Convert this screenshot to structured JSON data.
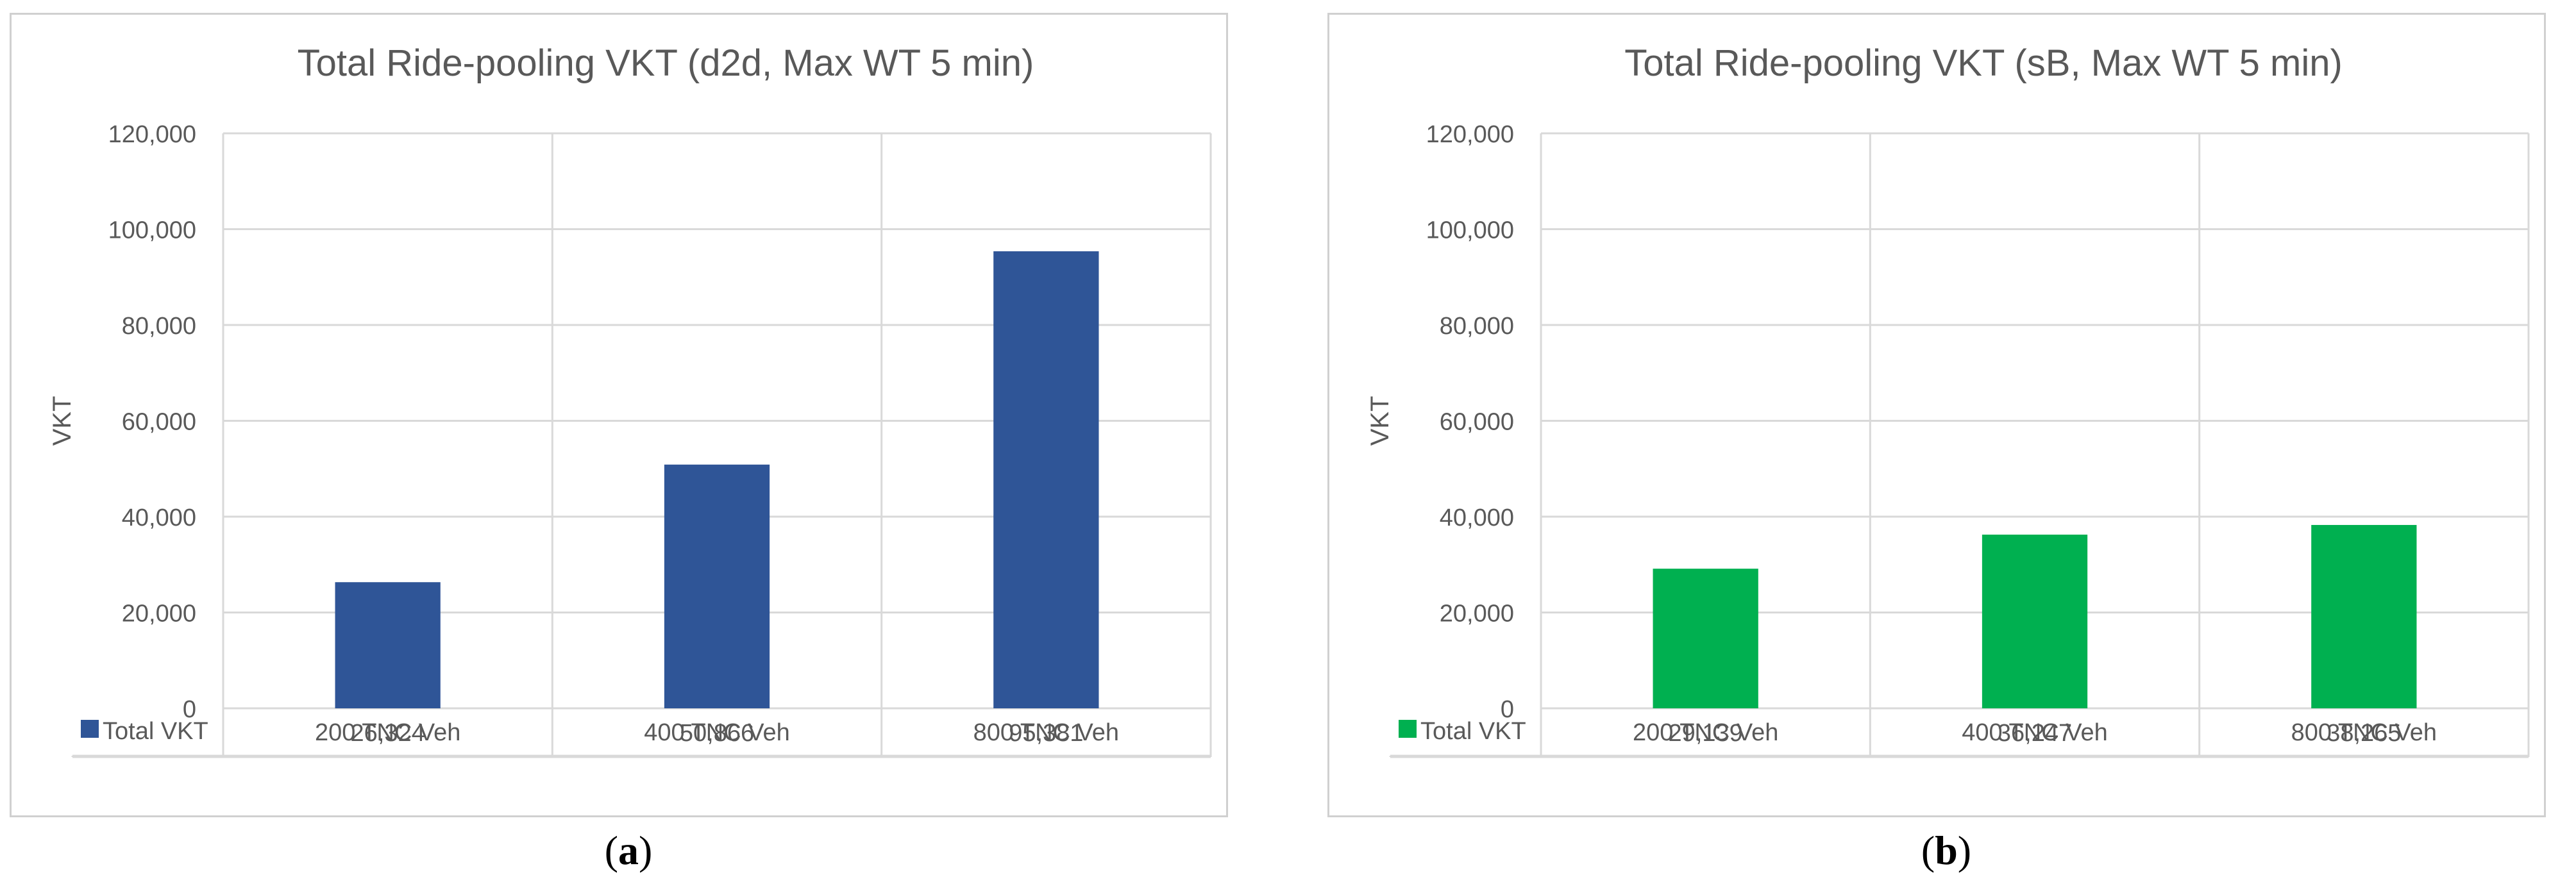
{
  "chart_data": [
    {
      "type": "bar",
      "title": "Total Ride-pooling VKT (d2d, Max WT 5 min)",
      "ylabel": "VKT",
      "xlabel": "",
      "categories": [
        "200 TNC Veh",
        "400 TNC Veh",
        "800 TNC Veh"
      ],
      "series": [
        {
          "name": "Total VKT",
          "values": [
            26324,
            50866,
            95381
          ],
          "labels": [
            "26,324",
            "50,866",
            "95,381"
          ]
        }
      ],
      "ylim": [
        0,
        120000
      ],
      "yticks": [
        "0",
        "20,000",
        "40,000",
        "60,000",
        "80,000",
        "100,000",
        "120,000"
      ],
      "grid": true,
      "data_table": true,
      "color": "#2f5597"
    },
    {
      "type": "bar",
      "title": "Total Ride-pooling VKT (sB, Max WT 5 min)",
      "ylabel": "VKT",
      "xlabel": "",
      "categories": [
        "200 TNC Veh",
        "400 TNC Veh",
        "800 TNC Veh"
      ],
      "series": [
        {
          "name": "Total VKT",
          "values": [
            29139,
            36247,
            38265
          ],
          "labels": [
            "29,139",
            "36,247",
            "38,265"
          ]
        }
      ],
      "ylim": [
        0,
        120000
      ],
      "yticks": [
        "0",
        "20,000",
        "40,000",
        "60,000",
        "80,000",
        "100,000",
        "120,000"
      ],
      "grid": true,
      "data_table": true,
      "color": "#00b050"
    }
  ],
  "captions": [
    {
      "open": "(",
      "letter": "a",
      "close": ")"
    },
    {
      "open": "(",
      "letter": "b",
      "close": ")"
    }
  ]
}
